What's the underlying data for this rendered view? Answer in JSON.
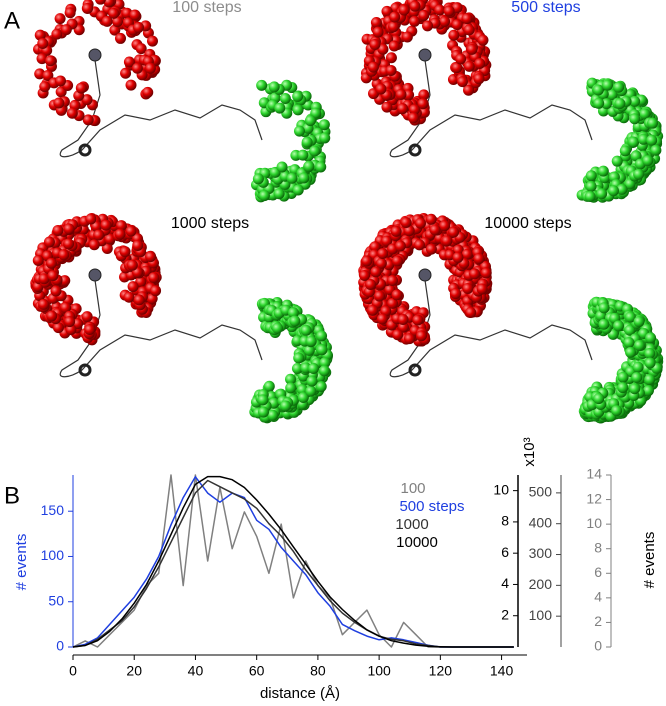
{
  "panels": {
    "a": "A",
    "b": "B"
  },
  "panel_a": [
    {
      "title": "100 steps",
      "color": "#8c8c8c"
    },
    {
      "title": "500 steps",
      "color": "#1f3fe0"
    },
    {
      "title": "1000 steps",
      "color": "#000000"
    },
    {
      "title": "10000 steps",
      "color": "#000000"
    }
  ],
  "chart_data": {
    "type": "line",
    "xlabel": "distance (Å)",
    "ylabel": "# events",
    "y2label": "x10³",
    "y4label": "# events",
    "x": [
      0,
      4,
      8,
      12,
      16,
      20,
      24,
      28,
      32,
      36,
      40,
      44,
      48,
      52,
      56,
      60,
      64,
      68,
      72,
      76,
      80,
      84,
      88,
      92,
      96,
      100,
      104,
      108,
      112,
      116,
      120,
      124,
      128,
      132,
      136,
      140,
      144
    ],
    "xlim": [
      0,
      147
    ],
    "xticks": [
      0,
      20,
      40,
      60,
      80,
      100,
      120,
      140
    ],
    "ylim": [
      0,
      190
    ],
    "yticks": [
      0,
      50,
      100,
      150
    ],
    "y2lim": [
      0,
      11
    ],
    "y2ticks": [
      2,
      4,
      6,
      8,
      10
    ],
    "y3lim": [
      0,
      558
    ],
    "y3ticks": [
      100,
      200,
      300,
      400,
      500
    ],
    "y4lim": [
      0,
      14
    ],
    "y4ticks": [
      0,
      2,
      4,
      6,
      8,
      10,
      12,
      14
    ],
    "axis_colors": {
      "y": "#1f3fe0",
      "y2": "#000000",
      "y3": "#444444",
      "y4": "#808080"
    },
    "series": [
      {
        "name": "100",
        "color": "#808080",
        "axis": "y4",
        "values": [
          0,
          0.5,
          0,
          1,
          2,
          3,
          5,
          6,
          14,
          5,
          14,
          7,
          13,
          8,
          11,
          9,
          6,
          10,
          4,
          7,
          5,
          4,
          1,
          2,
          3,
          1,
          0,
          2,
          1,
          0,
          0,
          0,
          0,
          0,
          0,
          0,
          0
        ]
      },
      {
        "name": "500 steps",
        "color": "#1f3fe0",
        "axis": "y",
        "values": [
          0,
          3,
          10,
          25,
          40,
          55,
          75,
          100,
          135,
          165,
          188,
          170,
          160,
          170,
          165,
          140,
          130,
          110,
          95,
          80,
          60,
          45,
          25,
          18,
          12,
          8,
          10,
          8,
          5,
          2,
          0,
          0,
          0,
          0,
          0,
          0,
          0
        ]
      },
      {
        "name": "1000",
        "color": "#333333",
        "axis": "y3",
        "values": [
          0,
          5,
          25,
          55,
          85,
          130,
          190,
          260,
          340,
          420,
          500,
          540,
          520,
          500,
          480,
          450,
          400,
          360,
          310,
          250,
          200,
          150,
          110,
          80,
          55,
          35,
          25,
          20,
          10,
          5,
          0,
          0,
          0,
          0,
          0,
          0,
          0
        ]
      },
      {
        "name": "10000",
        "color": "#000000",
        "axis": "y2",
        "values": [
          0,
          0.1,
          0.4,
          1,
          1.8,
          2.8,
          4,
          5.5,
          7.2,
          8.9,
          10.4,
          10.9,
          10.9,
          10.7,
          10.2,
          9.4,
          8.5,
          7.5,
          6.4,
          5.3,
          4.2,
          3.2,
          2.4,
          1.7,
          1.1,
          0.7,
          0.4,
          0.25,
          0.12,
          0.05,
          0.02,
          0,
          0,
          0,
          0,
          0,
          0
        ]
      }
    ]
  }
}
